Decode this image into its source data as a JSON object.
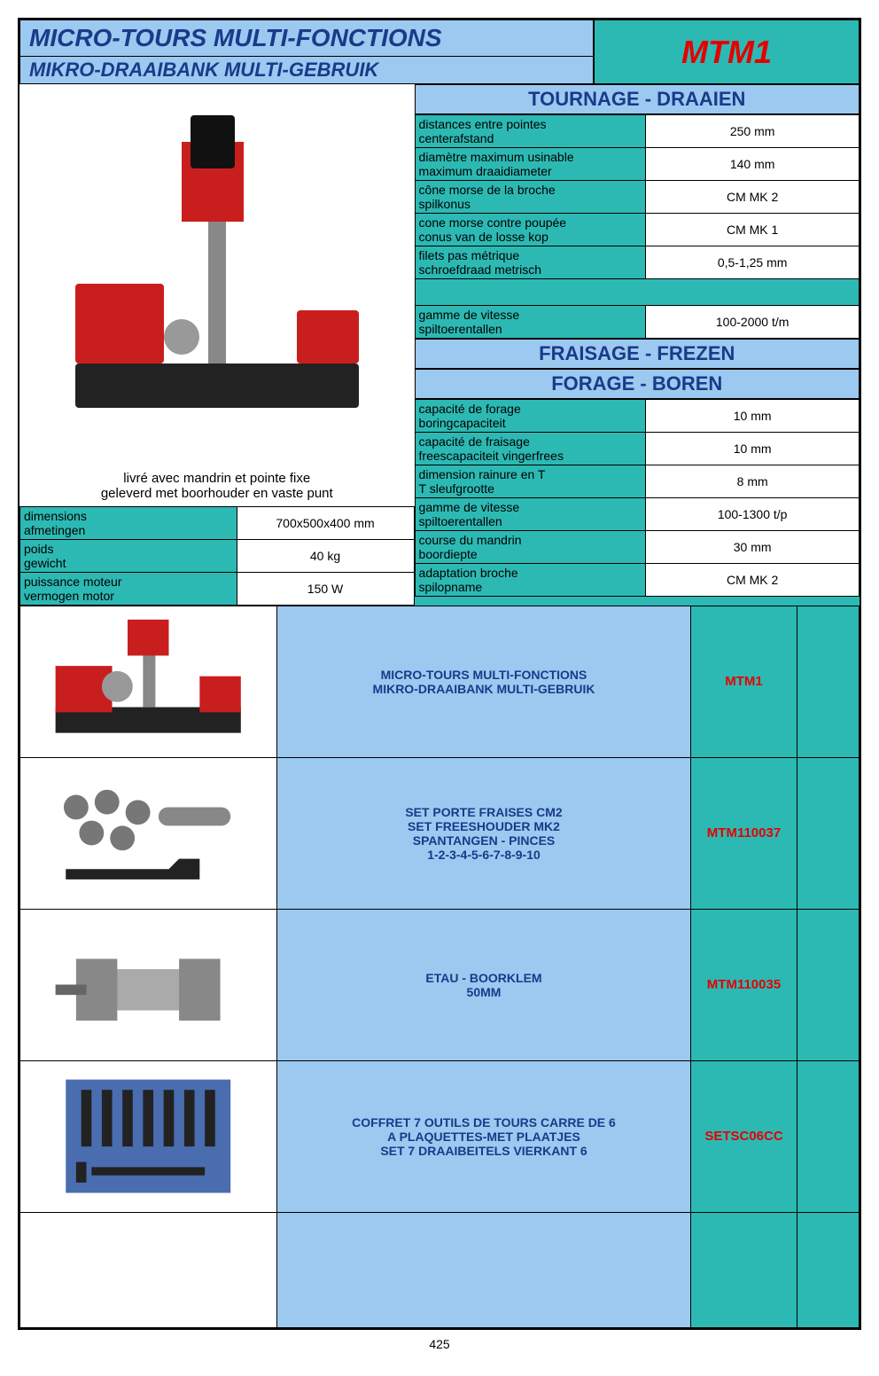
{
  "header": {
    "title_fr": "MICRO-TOURS MULTI-FONCTIONS",
    "title_nl": "MIKRO-DRAAIBANK MULTI-GEBRUIK",
    "model": "MTM1"
  },
  "caption": {
    "line1": "livré avec mandrin et pointe fixe",
    "line2": "geleverd met boorhouder en vaste punt"
  },
  "left_specs": [
    {
      "fr": "dimensions",
      "nl": "afmetingen",
      "val": "700x500x400 mm"
    },
    {
      "fr": "poids",
      "nl": "gewicht",
      "val": "40 kg"
    },
    {
      "fr": "puissance moteur",
      "nl": "vermogen motor",
      "val": "150 W"
    }
  ],
  "section_tournage": "TOURNAGE - DRAAIEN",
  "tournage": [
    {
      "fr": "distances entre pointes",
      "nl": "centerafstand",
      "val": "250 mm"
    },
    {
      "fr": "diamètre maximum usinable",
      "nl": "maximum draaidiameter",
      "val": "140 mm"
    },
    {
      "fr": "cône morse de la broche",
      "nl": "spilkonus",
      "val": "CM MK 2"
    },
    {
      "fr": "cone morse contre poupée",
      "nl": "conus van de losse kop",
      "val": "CM MK 1"
    },
    {
      "fr": "filets pas métrique",
      "nl": "schroefdraad metrisch",
      "val": "0,5-1,25 mm"
    },
    {
      "fr": "gamme de vitesse",
      "nl": "spiltoerentallen",
      "val": "100-2000 t/m"
    }
  ],
  "section_fraisage": "FRAISAGE - FREZEN",
  "section_forage": "FORAGE - BOREN",
  "forage": [
    {
      "fr": "capacité de forage",
      "nl": "boringcapaciteit",
      "val": "10 mm"
    },
    {
      "fr": "capacité de fraisage",
      "nl": "freescapaciteit vingerfrees",
      "val": "10 mm"
    },
    {
      "fr": "dimension rainure en T",
      "nl": "T sleufgrootte",
      "val": "8 mm"
    },
    {
      "fr": "gamme de vitesse",
      "nl": "spiltoerentallen",
      "val": "100-1300 t/p"
    },
    {
      "fr": "course du mandrin",
      "nl": "boordiepte",
      "val": "30 mm"
    },
    {
      "fr": "adaptation broche",
      "nl": "spilopname",
      "val": "CM MK 2"
    }
  ],
  "products": [
    {
      "desc_lines": [
        "MICRO-TOURS MULTI-FONCTIONS",
        "MIKRO-DRAAIBANK MULTI-GEBRUIK"
      ],
      "code": "MTM1",
      "icon": "machine"
    },
    {
      "desc_lines": [
        "SET PORTE FRAISES CM2",
        "SET FREESHOUDER MK2",
        "SPANTANGEN - PINCES",
        "1-2-3-4-5-6-7-8-9-10"
      ],
      "code": "MTM110037",
      "icon": "collets"
    },
    {
      "desc_lines": [
        "ETAU - BOORKLEM",
        "50MM"
      ],
      "code": "MTM110035",
      "icon": "vise"
    },
    {
      "desc_lines": [
        "COFFRET 7 OUTILS DE TOURS CARRE DE 6",
        "A PLAQUETTES-MET PLAATJES",
        "SET 7 DRAAIBEITELS VIERKANT 6"
      ],
      "code": "SETSC06CC",
      "icon": "tools"
    },
    {
      "desc_lines": [],
      "code": "",
      "icon": ""
    }
  ],
  "page_number": "425"
}
